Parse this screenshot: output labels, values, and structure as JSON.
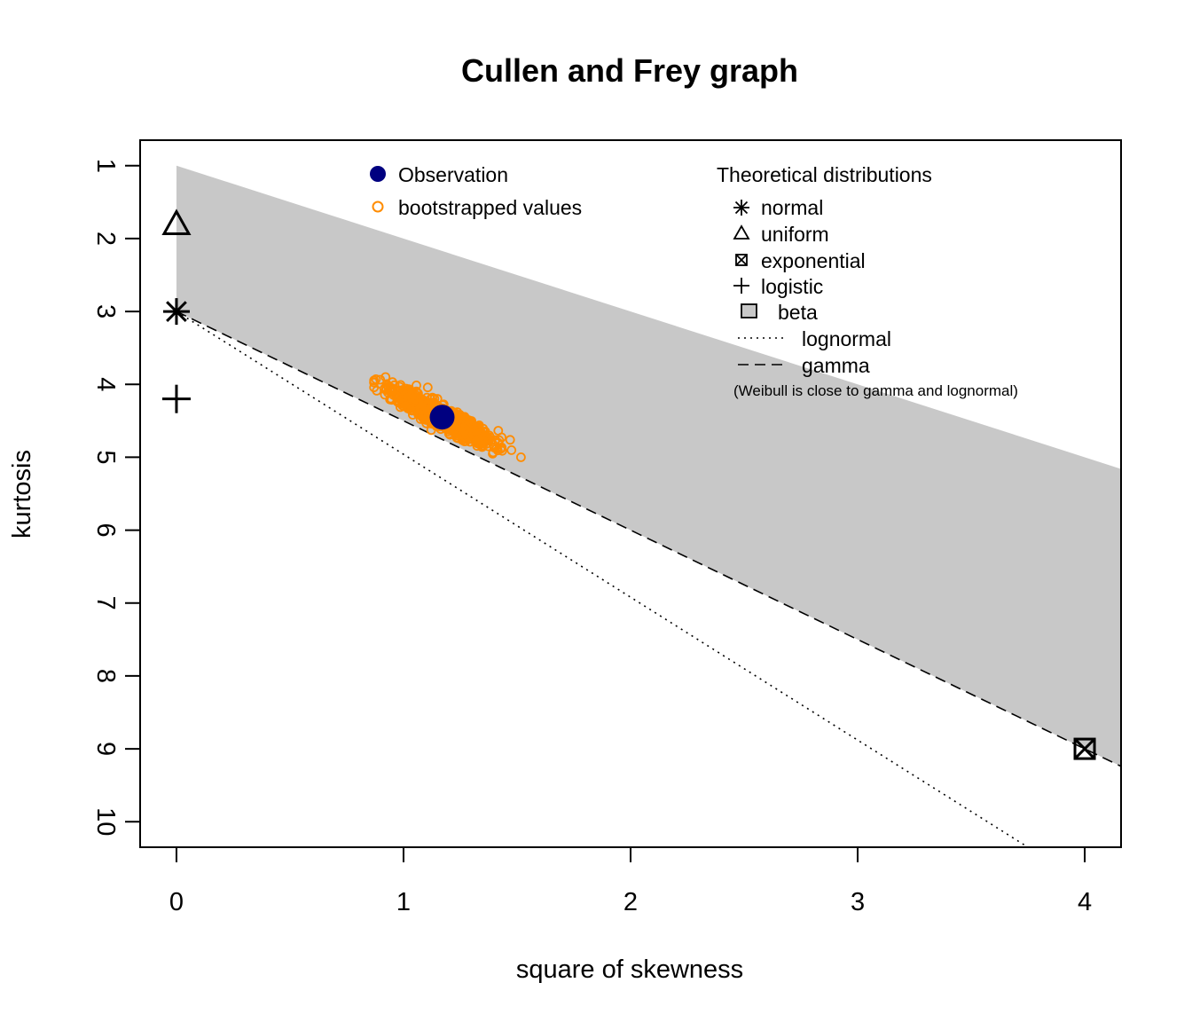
{
  "chart_data": {
    "type": "scatter",
    "title": "Cullen and Frey graph",
    "xlabel": "square of skewness",
    "ylabel": "kurtosis",
    "xlim": [
      -0.16,
      4.16
    ],
    "ylim": [
      10.35,
      0.65
    ],
    "y_reversed": true,
    "xticks": [
      0,
      1,
      2,
      3,
      4
    ],
    "yticks": [
      1,
      2,
      3,
      4,
      5,
      6,
      7,
      8,
      9,
      10
    ],
    "grid": false,
    "observation": {
      "x": 1.17,
      "y": 4.45,
      "color": "#000080",
      "label": "Observation"
    },
    "bootstrap": {
      "label": "bootstrapped values",
      "color": "#FF8C00",
      "x_range": [
        0.87,
        1.55
      ],
      "y_range": [
        3.9,
        5.0
      ],
      "center": [
        1.17,
        4.45
      ]
    },
    "theoretical": [
      {
        "name": "normal",
        "x": 0,
        "y": 3,
        "symbol": "asterisk"
      },
      {
        "name": "uniform",
        "x": 0,
        "y": 1.8,
        "symbol": "triangle"
      },
      {
        "name": "exponential",
        "x": 4,
        "y": 9,
        "symbol": "boxed-x"
      },
      {
        "name": "logistic",
        "x": 0,
        "y": 4.2,
        "symbol": "plus"
      }
    ],
    "beta_region": {
      "upper": [
        [
          0,
          1
        ],
        [
          4.16,
          5.16
        ]
      ],
      "lower": [
        [
          0,
          3
        ],
        [
          4.16,
          9.24
        ]
      ],
      "color": "#C8C8C8"
    },
    "lognormal_line": [
      [
        0,
        3
      ],
      [
        3.75,
        10.35
      ]
    ],
    "gamma_line": [
      [
        0,
        3
      ],
      [
        4.16,
        9.24
      ]
    ],
    "legend_left": {
      "placement": "top-center",
      "entries": [
        "Observation",
        "bootstrapped values"
      ]
    },
    "legend_right": {
      "placement": "top-right",
      "title": "Theoretical distributions",
      "entries": [
        "normal",
        "uniform",
        "exponential",
        "logistic",
        "beta",
        "lognormal",
        "gamma"
      ],
      "note": "(Weibull is close to gamma and lognormal)"
    }
  }
}
